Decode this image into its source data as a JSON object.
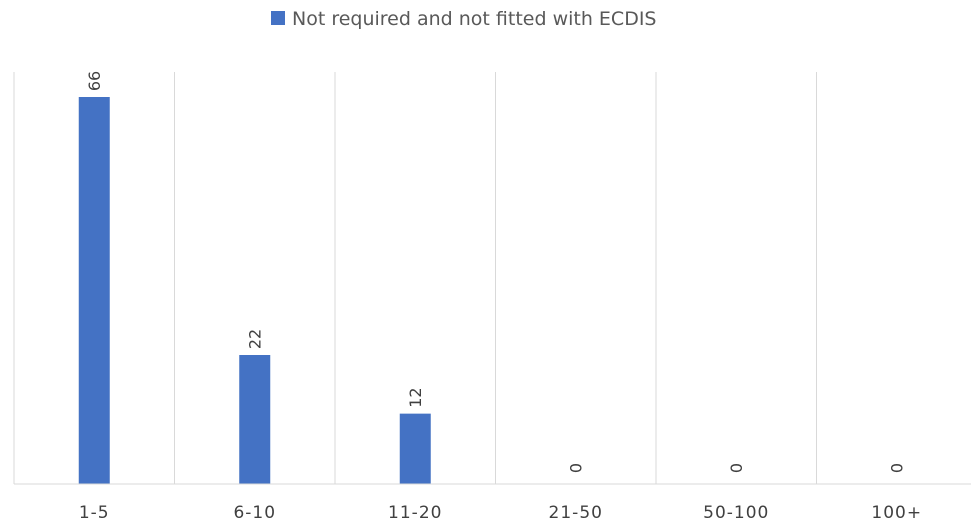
{
  "chart_data": {
    "type": "bar",
    "categories": [
      "1-5",
      "6-10",
      "11-20",
      "21-50",
      "50-100",
      "100+"
    ],
    "series": [
      {
        "name": "Not required and not fitted with ECDIS",
        "values": [
          66,
          22,
          12,
          0,
          0,
          0
        ],
        "color": "#4472C4"
      }
    ],
    "data_labels": [
      "66",
      "22",
      "12",
      "0",
      "0",
      "0"
    ],
    "ylim": [
      0,
      72
    ],
    "grid": "vertical category dividers",
    "legend_position": "top",
    "gridline_color": "#d9d9d9"
  }
}
